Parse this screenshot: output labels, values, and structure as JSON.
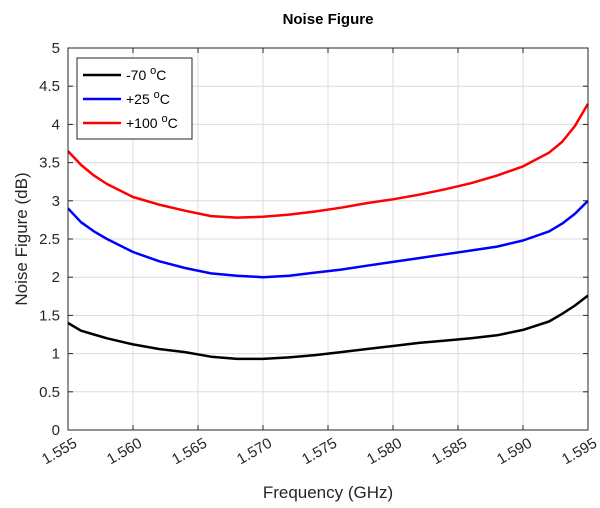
{
  "chart_data": {
    "type": "line",
    "title": "Noise Figure",
    "xlabel": "Frequency (GHz)",
    "ylabel": "Noise Figure (dB)",
    "xlim": [
      1.555,
      1.595
    ],
    "ylim": [
      0,
      5
    ],
    "xticks": [
      1.555,
      1.56,
      1.565,
      1.57,
      1.575,
      1.58,
      1.585,
      1.59,
      1.595
    ],
    "xtick_labels": [
      "1.555",
      "1.560",
      "1.565",
      "1.570",
      "1.575",
      "1.580",
      "1.585",
      "1.590",
      "1.595"
    ],
    "yticks": [
      0,
      0.5,
      1,
      1.5,
      2,
      2.5,
      3,
      3.5,
      4,
      4.5,
      5
    ],
    "ytick_labels": [
      "0",
      "0.5",
      "1",
      "1.5",
      "2",
      "2.5",
      "3",
      "3.5",
      "4",
      "4.5",
      "5"
    ],
    "grid": true,
    "legend_position": "top-left",
    "series": [
      {
        "name": "-70 ",
        "name_sup": "o",
        "name_suffix": "C",
        "color": "#000000",
        "x": [
          1.555,
          1.556,
          1.557,
          1.558,
          1.56,
          1.562,
          1.564,
          1.566,
          1.568,
          1.57,
          1.572,
          1.574,
          1.576,
          1.578,
          1.58,
          1.582,
          1.584,
          1.586,
          1.588,
          1.59,
          1.592,
          1.593,
          1.594,
          1.595
        ],
        "y": [
          1.4,
          1.3,
          1.25,
          1.2,
          1.12,
          1.06,
          1.02,
          0.96,
          0.93,
          0.93,
          0.95,
          0.98,
          1.02,
          1.06,
          1.1,
          1.14,
          1.17,
          1.2,
          1.24,
          1.31,
          1.42,
          1.52,
          1.63,
          1.76
        ]
      },
      {
        "name": "+25 ",
        "name_sup": "o",
        "name_suffix": "C",
        "color": "#0000ff",
        "x": [
          1.555,
          1.556,
          1.557,
          1.558,
          1.56,
          1.562,
          1.564,
          1.566,
          1.568,
          1.57,
          1.572,
          1.574,
          1.576,
          1.578,
          1.58,
          1.582,
          1.584,
          1.586,
          1.588,
          1.59,
          1.592,
          1.593,
          1.594,
          1.595
        ],
        "y": [
          2.9,
          2.72,
          2.6,
          2.5,
          2.33,
          2.21,
          2.12,
          2.05,
          2.02,
          2.0,
          2.02,
          2.06,
          2.1,
          2.15,
          2.2,
          2.25,
          2.3,
          2.35,
          2.4,
          2.48,
          2.6,
          2.7,
          2.83,
          3.0
        ]
      },
      {
        "name": "+100 ",
        "name_sup": "o",
        "name_suffix": "C",
        "color": "#ff0000",
        "x": [
          1.555,
          1.556,
          1.557,
          1.558,
          1.56,
          1.562,
          1.564,
          1.566,
          1.568,
          1.57,
          1.572,
          1.574,
          1.576,
          1.578,
          1.58,
          1.582,
          1.584,
          1.586,
          1.588,
          1.59,
          1.592,
          1.593,
          1.594,
          1.595
        ],
        "y": [
          3.65,
          3.47,
          3.33,
          3.22,
          3.05,
          2.95,
          2.87,
          2.8,
          2.78,
          2.79,
          2.82,
          2.86,
          2.91,
          2.97,
          3.02,
          3.08,
          3.15,
          3.23,
          3.33,
          3.45,
          3.63,
          3.77,
          3.98,
          4.27
        ]
      }
    ]
  }
}
